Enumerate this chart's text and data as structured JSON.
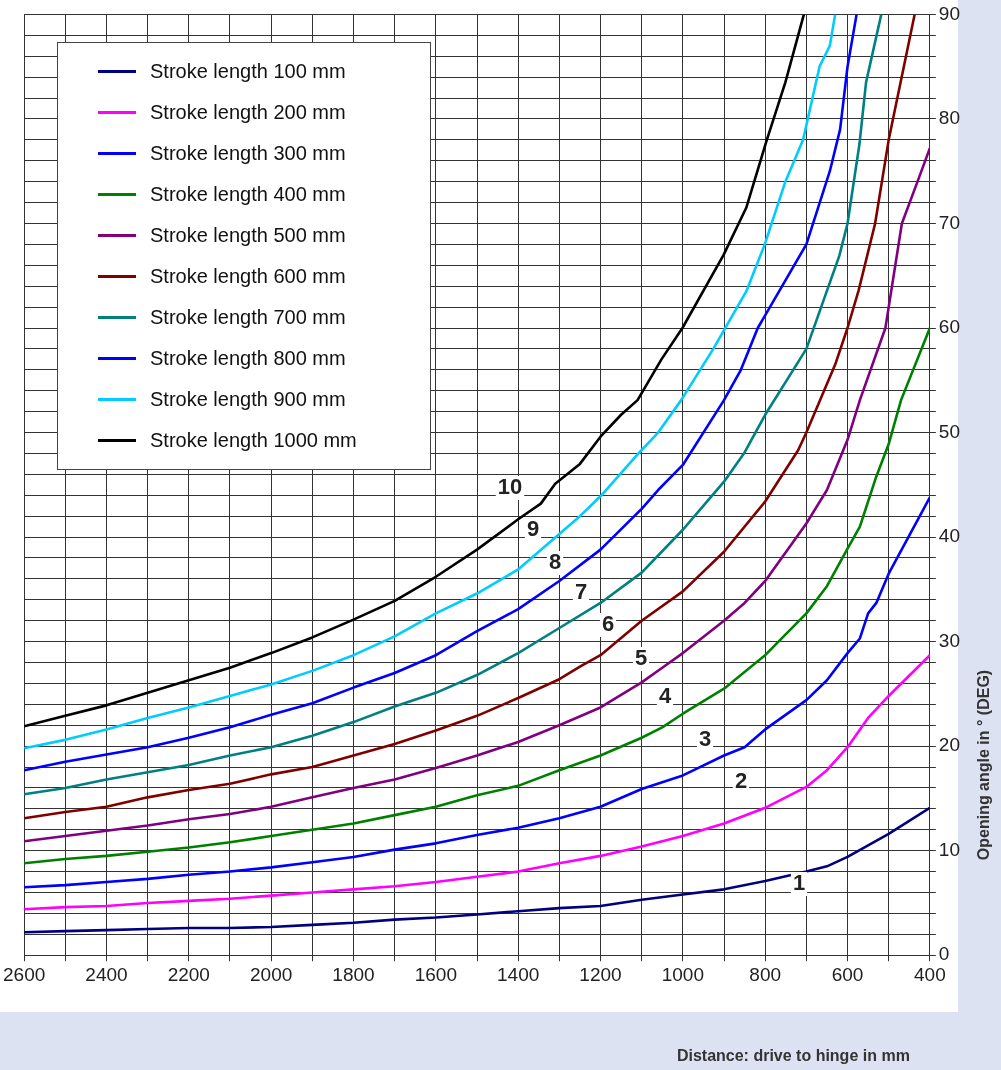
{
  "chart_data": {
    "type": "line",
    "xlabel": "Distance: drive to hinge in mm",
    "ylabel": "Opening angle in ° (DEG)",
    "xlim": [
      2600,
      400
    ],
    "ylim": [
      0,
      90
    ],
    "xticks": [
      2600,
      {
        "value": 2500,
        "label": null
      },
      2400,
      {
        "value": 2300,
        "label": null
      },
      2200,
      {
        "value": 2100,
        "label": null
      },
      2000,
      {
        "value": 1900,
        "label": null
      },
      1800,
      {
        "value": 1700,
        "label": null
      },
      1600,
      {
        "value": 1500,
        "label": null
      },
      1400,
      {
        "value": 1300,
        "label": null
      },
      1200,
      {
        "value": 1100,
        "label": null
      },
      1000,
      {
        "value": 900,
        "label": null
      },
      800,
      {
        "value": 700,
        "label": null
      },
      600,
      {
        "value": 500,
        "label": null
      },
      400
    ],
    "yticks": [
      0,
      {
        "value": 2,
        "label": null
      },
      {
        "value": 4,
        "label": null
      },
      {
        "value": 6,
        "label": null
      },
      {
        "value": 8,
        "label": null
      },
      10,
      {
        "value": 12,
        "label": null
      },
      {
        "value": 14,
        "label": null
      },
      {
        "value": 16,
        "label": null
      },
      {
        "value": 18,
        "label": null
      },
      20,
      {
        "value": 22,
        "label": null
      },
      {
        "value": 24,
        "label": null
      },
      {
        "value": 26,
        "label": null
      },
      {
        "value": 28,
        "label": null
      },
      30,
      {
        "value": 32,
        "label": null
      },
      {
        "value": 34,
        "label": null
      },
      {
        "value": 36,
        "label": null
      },
      {
        "value": 38,
        "label": null
      },
      40,
      {
        "value": 42,
        "label": null
      },
      {
        "value": 44,
        "label": null
      },
      {
        "value": 46,
        "label": null
      },
      {
        "value": 48,
        "label": null
      },
      50,
      {
        "value": 52,
        "label": null
      },
      {
        "value": 54,
        "label": null
      },
      {
        "value": 56,
        "label": null
      },
      {
        "value": 58,
        "label": null
      },
      60,
      {
        "value": 62,
        "label": null
      },
      {
        "value": 64,
        "label": null
      },
      {
        "value": 66,
        "label": null
      },
      {
        "value": 68,
        "label": null
      },
      70,
      {
        "value": 72,
        "label": null
      },
      {
        "value": 74,
        "label": null
      },
      {
        "value": 76,
        "label": null
      },
      {
        "value": 78,
        "label": null
      },
      80,
      {
        "value": 82,
        "label": null
      },
      {
        "value": 84,
        "label": null
      },
      {
        "value": 86,
        "label": null
      },
      {
        "value": 88,
        "label": null
      },
      90
    ],
    "grid": true,
    "legend": "top left",
    "series": [
      {
        "name": "Stroke length 100 mm",
        "color": "#000080",
        "x": [
          2600,
          2500,
          2400,
          2300,
          2200,
          2100,
          2000,
          1900,
          1800,
          1700,
          1600,
          1500,
          1400,
          1300,
          1200,
          1100,
          1000,
          900,
          800,
          700,
          650,
          600,
          500,
          400
        ],
        "values": [
          2.2,
          2.3,
          2.4,
          2.5,
          2.6,
          2.6,
          2.7,
          2.9,
          3.1,
          3.4,
          3.6,
          3.9,
          4.2,
          4.5,
          4.7,
          5.3,
          5.8,
          6.3,
          7.1,
          8.0,
          8.5,
          9.4,
          11.6,
          14.1
        ]
      },
      {
        "name": "Stroke length 200 mm",
        "color": "#ff00ff",
        "x": [
          2600,
          2500,
          2400,
          2300,
          2200,
          2100,
          2000,
          1900,
          1800,
          1700,
          1600,
          1500,
          1400,
          1300,
          1200,
          1100,
          1000,
          900,
          800,
          700,
          650,
          600,
          550,
          500,
          400
        ],
        "values": [
          4.4,
          4.6,
          4.7,
          5.0,
          5.2,
          5.4,
          5.7,
          6.0,
          6.3,
          6.6,
          7.0,
          7.5,
          8.0,
          8.8,
          9.5,
          10.4,
          11.4,
          12.6,
          14.1,
          16.1,
          17.7,
          19.9,
          22.7,
          24.8,
          28.7
        ]
      },
      {
        "name": "Stroke length 300 mm",
        "color": "#0000ff",
        "x": [
          2600,
          2500,
          2400,
          2300,
          2200,
          2100,
          2000,
          1900,
          1800,
          1700,
          1600,
          1500,
          1400,
          1300,
          1200,
          1100,
          1000,
          900,
          850,
          800,
          700,
          650,
          600,
          570,
          550,
          530,
          500,
          400
        ],
        "values": [
          6.5,
          6.7,
          7.0,
          7.3,
          7.7,
          8.0,
          8.4,
          8.9,
          9.4,
          10.1,
          10.7,
          11.5,
          12.2,
          13.1,
          14.2,
          15.9,
          17.2,
          19.1,
          19.9,
          21.6,
          24.4,
          26.3,
          28.9,
          30.3,
          32.7,
          33.7,
          36.5,
          43.8
        ]
      },
      {
        "name": "Stroke length 400 mm",
        "color": "#008000",
        "x": [
          2600,
          2500,
          2400,
          2300,
          2200,
          2100,
          2000,
          1900,
          1800,
          1700,
          1600,
          1500,
          1400,
          1300,
          1200,
          1100,
          1050,
          1000,
          900,
          800,
          700,
          650,
          600,
          570,
          530,
          500,
          470,
          400
        ],
        "values": [
          8.8,
          9.2,
          9.5,
          9.9,
          10.3,
          10.8,
          11.4,
          12.0,
          12.6,
          13.4,
          14.2,
          15.3,
          16.2,
          17.7,
          19.1,
          20.8,
          21.8,
          23.1,
          25.5,
          28.7,
          32.7,
          35.3,
          38.9,
          41.0,
          45.8,
          48.9,
          53.1,
          60.0
        ]
      },
      {
        "name": "Stroke length 500 mm",
        "color": "#800080",
        "x": [
          2600,
          2500,
          2400,
          2300,
          2200,
          2100,
          2000,
          1900,
          1800,
          1700,
          1600,
          1500,
          1400,
          1300,
          1200,
          1100,
          1050,
          1000,
          900,
          850,
          800,
          700,
          650,
          600,
          570,
          508,
          468,
          430,
          400
        ],
        "values": [
          10.9,
          11.4,
          11.9,
          12.4,
          13.0,
          13.5,
          14.2,
          15.1,
          16.0,
          16.8,
          17.9,
          19.1,
          20.4,
          22.0,
          23.7,
          26.1,
          27.5,
          28.9,
          32.0,
          33.7,
          35.8,
          41.3,
          44.5,
          49.3,
          53.1,
          60,
          70,
          74,
          77.2
        ]
      },
      {
        "name": "Stroke length 600 mm",
        "color": "#800000",
        "x": [
          2600,
          2500,
          2400,
          2300,
          2200,
          2100,
          2000,
          1900,
          1800,
          1700,
          1600,
          1500,
          1400,
          1300,
          1250,
          1200,
          1100,
          1000,
          900,
          800,
          720,
          700,
          630,
          600,
          573,
          533,
          500,
          437
        ],
        "values": [
          13.1,
          13.7,
          14.2,
          15.1,
          15.8,
          16.4,
          17.3,
          18.0,
          19.1,
          20.2,
          21.5,
          22.9,
          24.6,
          26.4,
          27.6,
          28.7,
          32.0,
          34.8,
          38.6,
          43.4,
          48.3,
          50.0,
          56.5,
          60,
          63.6,
          70,
          78,
          90
        ]
      },
      {
        "name": "Stroke length 700 mm",
        "color": "#008080",
        "x": [
          2600,
          2500,
          2400,
          2300,
          2200,
          2100,
          2000,
          1900,
          1800,
          1700,
          1600,
          1500,
          1400,
          1300,
          1200,
          1100,
          1000,
          900,
          850,
          800,
          700,
          620,
          600,
          571,
          555,
          518
        ],
        "values": [
          15.4,
          16.0,
          16.8,
          17.5,
          18.2,
          19.1,
          19.9,
          21.0,
          22.3,
          23.8,
          25.1,
          26.8,
          28.9,
          31.3,
          33.7,
          36.6,
          40.7,
          45.3,
          48.1,
          51.7,
          58,
          66.9,
          70,
          77.6,
          83.5,
          90
        ]
      },
      {
        "name": "Stroke length 800 mm",
        "color": "#0000ff",
        "x": [
          2600,
          2500,
          2400,
          2300,
          2200,
          2100,
          2000,
          1900,
          1800,
          1700,
          1600,
          1500,
          1400,
          1300,
          1200,
          1100,
          1060,
          1000,
          900,
          859,
          818,
          700,
          643,
          618,
          600,
          578
        ],
        "values": [
          17.7,
          18.5,
          19.2,
          19.9,
          20.8,
          21.8,
          23.0,
          24.1,
          25.6,
          27.0,
          28.7,
          31.0,
          33.1,
          35.8,
          38.8,
          42.7,
          44.5,
          46.9,
          53.1,
          56,
          60,
          68,
          75,
          79,
          85,
          90
        ]
      },
      {
        "name": "Stroke length 900 mm",
        "color": "#00ccff",
        "x": [
          2600,
          2500,
          2400,
          2300,
          2200,
          2100,
          2000,
          1900,
          1800,
          1700,
          1600,
          1500,
          1400,
          1350,
          1300,
          1250,
          1200,
          1110,
          1060,
          1004,
          926,
          846,
          801,
          751,
          708,
          668,
          643,
          630
        ],
        "values": [
          19.8,
          20.6,
          21.6,
          22.7,
          23.7,
          24.8,
          25.9,
          27.2,
          28.7,
          30.5,
          32.7,
          34.6,
          36.9,
          38.6,
          40.3,
          42.0,
          43.9,
          47.9,
          50.0,
          53.1,
          58,
          63.5,
          68,
          74,
          78,
          85,
          87,
          90
        ]
      },
      {
        "name": "Stroke length 1000 mm",
        "color": "#000000",
        "x": [
          2600,
          2500,
          2400,
          2300,
          2200,
          2100,
          2000,
          1900,
          1800,
          1700,
          1600,
          1500,
          1400,
          1345,
          1310,
          1250,
          1200,
          1150,
          1110,
          1052,
          1001,
          901,
          846,
          796,
          751,
          706
        ],
        "values": [
          21.9,
          22.9,
          23.9,
          25.1,
          26.3,
          27.5,
          28.9,
          30.4,
          32.1,
          33.9,
          36.2,
          38.8,
          41.7,
          43.2,
          45.1,
          47.0,
          49.6,
          51.7,
          53.1,
          57,
          60,
          67,
          71.5,
          78,
          83.5,
          90
        ]
      }
    ],
    "annotations": [
      "10",
      "9",
      "8",
      "7",
      "6",
      "5",
      "4",
      "3",
      "2",
      "1"
    ]
  }
}
